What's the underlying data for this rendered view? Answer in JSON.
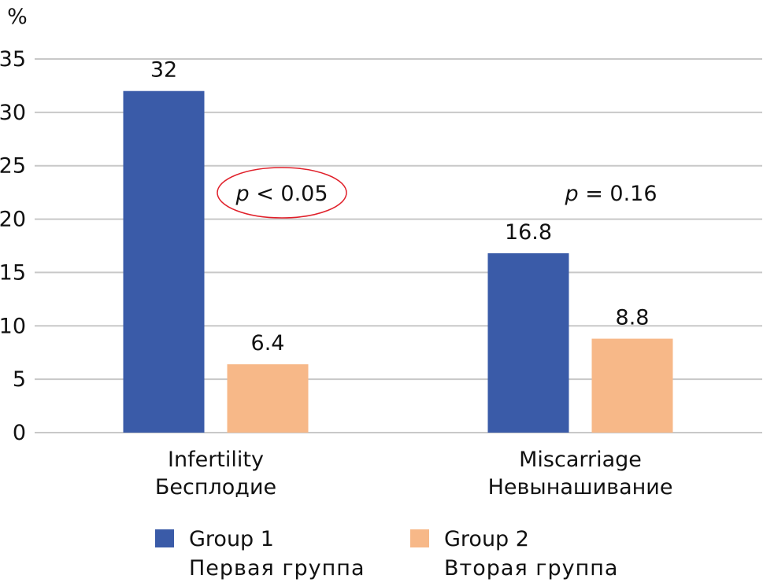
{
  "chart_data": {
    "type": "bar",
    "title": "",
    "ylabel": "%",
    "xlabel": "",
    "ylim": [
      0,
      35
    ],
    "yticks": [
      0,
      5,
      10,
      15,
      20,
      25,
      30,
      35
    ],
    "grid": true,
    "categories": [
      {
        "en": "Infertility",
        "ru": "Бесплодие"
      },
      {
        "en": "Miscarriage",
        "ru": "Невынашивание"
      }
    ],
    "series": [
      {
        "name": "Group 1",
        "name_ru": "Первая группа",
        "color": "#3a5ba8",
        "values": [
          32,
          16.8
        ],
        "labels": [
          "32",
          "16.8"
        ]
      },
      {
        "name": "Group 2",
        "name_ru": "Вторая группа",
        "color": "#f7b888",
        "values": [
          6.4,
          8.8
        ],
        "labels": [
          "6.4",
          "8.8"
        ]
      }
    ],
    "annotations": [
      {
        "category": 0,
        "p_symbol": "p",
        "text": " < 0.05",
        "highlighted": true,
        "highlight_color": "#e0202a"
      },
      {
        "category": 1,
        "p_symbol": "p",
        "text": " = 0.16",
        "highlighted": false
      }
    ],
    "legend": "bottom"
  }
}
